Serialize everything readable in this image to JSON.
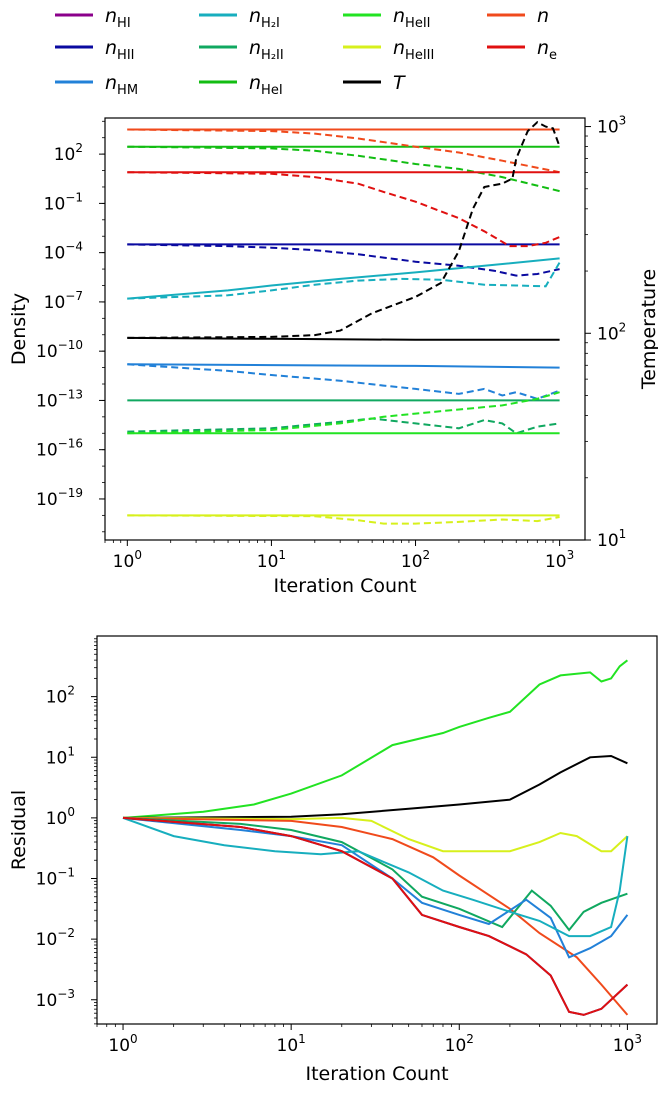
{
  "legend": {
    "items": [
      {
        "label": "n",
        "sub": "HI",
        "color": "#8b008b"
      },
      {
        "label": "n",
        "sub": "H₂I",
        "color": "#17aebe"
      },
      {
        "label": "n",
        "sub": "HeII",
        "color": "#22e322"
      },
      {
        "label": "n",
        "sub": "",
        "color": "#f04a1c"
      },
      {
        "label": "n",
        "sub": "HII",
        "color": "#0a0aa0"
      },
      {
        "label": "n",
        "sub": "H₂II",
        "color": "#10a860"
      },
      {
        "label": "n",
        "sub": "HeIII",
        "color": "#d7f01c"
      },
      {
        "label": "n",
        "sub": "e",
        "color": "#e01010"
      },
      {
        "label": "n",
        "sub": "HM",
        "color": "#2281d8"
      },
      {
        "label": "n",
        "sub": "HeI",
        "color": "#12bd12"
      },
      {
        "label": "T",
        "sub": "",
        "color": "#000000"
      }
    ]
  },
  "chart_data": [
    {
      "type": "line",
      "xlabel": "Iteration Count",
      "ylabel": "Density",
      "y2label": "Temperature",
      "xscale": "log",
      "yscale": "log",
      "y2scale": "log",
      "xlim": [
        0.7,
        1500
      ],
      "ylim_exp": [
        -21.5,
        4.2
      ],
      "y2lim": [
        10,
        1100
      ],
      "x_ticks": [
        "10^0",
        "10^1",
        "10^2",
        "10^3"
      ],
      "y_ticks": [
        "10^2",
        "10^-1",
        "10^-4",
        "10^-7",
        "10^-10",
        "10^-13",
        "10^-16",
        "10^-19"
      ],
      "y2_ticks": [
        "10^1",
        "10^2",
        "10^3"
      ],
      "series_note": "solid = density (left axis, log10 values), dashed = compared solution; T on right axis",
      "series": [
        {
          "name": "n_HII",
          "color": "#0a0aa0",
          "style": "solid",
          "x": [
            1,
            1000
          ],
          "log10_y": [
            -3.5,
            -3.5
          ]
        },
        {
          "name": "n_HII",
          "color": "#0a0aa0",
          "style": "dashed",
          "x": [
            1,
            5,
            10,
            20,
            40,
            60,
            100,
            200,
            350,
            500,
            700,
            1000
          ],
          "log10_y": [
            -3.5,
            -3.6,
            -3.7,
            -3.85,
            -4.1,
            -4.3,
            -4.55,
            -4.8,
            -5.1,
            -5.4,
            -5.3,
            -5.0
          ]
        },
        {
          "name": "n_H2I",
          "color": "#17aebe",
          "style": "solid",
          "x": [
            1,
            5,
            10,
            30,
            100,
            300,
            1000
          ],
          "log10_y": [
            -6.8,
            -6.3,
            -6.0,
            -5.6,
            -5.2,
            -4.8,
            -4.35
          ]
        },
        {
          "name": "n_H2I",
          "color": "#17aebe",
          "style": "dashed",
          "x": [
            1,
            5,
            10,
            20,
            40,
            80,
            150,
            300,
            500,
            800,
            1000
          ],
          "log10_y": [
            -6.8,
            -6.6,
            -6.3,
            -5.95,
            -5.7,
            -5.6,
            -5.65,
            -5.95,
            -6.0,
            -6.05,
            -4.6
          ]
        },
        {
          "name": "n_HM",
          "color": "#2281d8",
          "style": "solid",
          "x": [
            1,
            10,
            100,
            1000
          ],
          "log10_y": [
            -10.8,
            -10.85,
            -10.9,
            -11.0
          ]
        },
        {
          "name": "n_HM",
          "color": "#2281d8",
          "style": "dashed",
          "x": [
            1,
            5,
            10,
            30,
            60,
            100,
            200,
            300,
            400,
            500,
            700,
            1000
          ],
          "log10_y": [
            -10.8,
            -11.2,
            -11.45,
            -11.8,
            -12.1,
            -12.3,
            -12.6,
            -12.3,
            -12.7,
            -12.5,
            -12.9,
            -12.4
          ]
        },
        {
          "name": "n_H2II",
          "color": "#10a860",
          "style": "solid",
          "x": [
            1,
            1000
          ],
          "log10_y": [
            -13.0,
            -13.0
          ]
        },
        {
          "name": "n_H2II",
          "color": "#10a860",
          "style": "dashed",
          "x": [
            1,
            10,
            30,
            50,
            100,
            200,
            300,
            400,
            500,
            700,
            1000
          ],
          "log10_y": [
            -14.9,
            -14.7,
            -14.3,
            -14.1,
            -14.4,
            -14.7,
            -14.2,
            -14.4,
            -15.0,
            -14.6,
            -14.4
          ]
        },
        {
          "name": "n_HeII",
          "color": "#22e322",
          "style": "solid",
          "x": [
            1,
            1000
          ],
          "log10_y": [
            -15.0,
            -15.0
          ]
        },
        {
          "name": "n_HeII",
          "color": "#22e322",
          "style": "dashed",
          "x": [
            1,
            10,
            30,
            60,
            100,
            200,
            400,
            700,
            1000
          ],
          "log10_y": [
            -15.0,
            -14.8,
            -14.4,
            -14.0,
            -13.8,
            -13.55,
            -13.3,
            -12.9,
            -12.5
          ]
        },
        {
          "name": "n_HeI",
          "color": "#12bd12",
          "style": "solid",
          "x": [
            1,
            1000
          ],
          "log10_y": [
            2.45,
            2.45
          ]
        },
        {
          "name": "n_HeI",
          "color": "#12bd12",
          "style": "dashed",
          "x": [
            1,
            10,
            20,
            40,
            70,
            100,
            200,
            400,
            1000
          ],
          "log10_y": [
            2.45,
            2.35,
            2.2,
            1.9,
            1.6,
            1.4,
            1.1,
            0.6,
            -0.25
          ]
        },
        {
          "name": "n",
          "color": "#f04a1c",
          "style": "solid",
          "x": [
            1,
            1000
          ],
          "log10_y": [
            3.5,
            3.5
          ]
        },
        {
          "name": "n",
          "color": "#f04a1c",
          "style": "dashed",
          "x": [
            1,
            10,
            20,
            40,
            70,
            100,
            200,
            400,
            1000
          ],
          "log10_y": [
            3.5,
            3.4,
            3.25,
            2.95,
            2.65,
            2.45,
            2.1,
            1.6,
            0.9
          ]
        },
        {
          "name": "n_e",
          "color": "#e01010",
          "style": "solid",
          "x": [
            1,
            1000
          ],
          "log10_y": [
            0.9,
            0.9
          ]
        },
        {
          "name": "n_e",
          "color": "#e01010",
          "style": "dashed",
          "x": [
            1,
            10,
            20,
            40,
            60,
            100,
            200,
            300,
            450,
            600,
            800,
            1000
          ],
          "log10_y": [
            0.9,
            0.8,
            0.6,
            0.2,
            -0.3,
            -0.9,
            -1.9,
            -2.7,
            -3.6,
            -3.6,
            -3.4,
            -3.05
          ]
        },
        {
          "name": "n_HeIII",
          "color": "#d7f01c",
          "style": "solid",
          "x": [
            1,
            1000
          ],
          "log10_y": [
            -20.0,
            -20.0
          ]
        },
        {
          "name": "n_HeIII",
          "color": "#d7f01c",
          "style": "dashed",
          "x": [
            1,
            20,
            40,
            60,
            100,
            200,
            400,
            700,
            1000
          ],
          "log10_y": [
            -20.0,
            -20.05,
            -20.3,
            -20.5,
            -20.5,
            -20.4,
            -20.25,
            -20.35,
            -20.1
          ]
        },
        {
          "name": "T",
          "color": "#000000",
          "style": "solid",
          "axis": "right",
          "x": [
            1,
            10,
            100,
            1000
          ],
          "y": [
            95,
            94,
            93,
            93
          ]
        },
        {
          "name": "T",
          "color": "#000000",
          "style": "dashed",
          "axis": "right",
          "x": [
            1,
            10,
            20,
            30,
            50,
            100,
            150,
            200,
            250,
            300,
            400,
            470,
            500,
            600,
            700,
            800,
            900,
            1000
          ],
          "y": [
            95,
            96,
            98,
            103,
            125,
            150,
            175,
            250,
            400,
            510,
            530,
            560,
            700,
            950,
            1050,
            1000,
            980,
            800
          ]
        }
      ]
    },
    {
      "type": "line",
      "xlabel": "Iteration Count",
      "ylabel": "Residual",
      "xscale": "log",
      "yscale": "log",
      "xlim": [
        0.7,
        1500
      ],
      "ylim_exp": [
        -3.4,
        3.0
      ],
      "x_ticks": [
        "10^0",
        "10^1",
        "10^2",
        "10^3"
      ],
      "y_ticks": [
        "10^2",
        "10^1",
        "10^0",
        "10^-1",
        "10^-2",
        "10^-3"
      ],
      "series": [
        {
          "name": "n_HeII",
          "color": "#22e322",
          "x": [
            1,
            3,
            6,
            10,
            20,
            40,
            80,
            100,
            150,
            200,
            300,
            400,
            600,
            700,
            800,
            900,
            1000
          ],
          "log10_y": [
            0.0,
            0.1,
            0.22,
            0.4,
            0.7,
            1.2,
            1.4,
            1.5,
            1.65,
            1.75,
            2.2,
            2.35,
            2.4,
            2.25,
            2.3,
            2.5,
            2.6
          ]
        },
        {
          "name": "T",
          "color": "#000000",
          "x": [
            1,
            10,
            20,
            50,
            100,
            200,
            300,
            400,
            600,
            800,
            1000
          ],
          "log10_y": [
            0.0,
            0.02,
            0.06,
            0.15,
            0.22,
            0.3,
            0.55,
            0.75,
            1.0,
            1.02,
            0.9
          ]
        },
        {
          "name": "n_HeIII",
          "color": "#d7f01c",
          "x": [
            1,
            10,
            20,
            30,
            50,
            80,
            100,
            200,
            300,
            400,
            500,
            700,
            800,
            1000
          ],
          "log10_y": [
            0.0,
            -0.02,
            0.0,
            -0.05,
            -0.35,
            -0.55,
            -0.55,
            -0.55,
            -0.4,
            -0.25,
            -0.3,
            -0.55,
            -0.55,
            -0.3
          ]
        },
        {
          "name": "n",
          "color": "#f04a1c",
          "x": [
            1,
            10,
            20,
            40,
            70,
            100,
            200,
            300,
            500,
            700,
            1000
          ],
          "log10_y": [
            0.0,
            -0.05,
            -0.15,
            -0.35,
            -0.65,
            -0.95,
            -1.5,
            -1.9,
            -2.3,
            -2.75,
            -3.25
          ]
        },
        {
          "name": "n_H2II",
          "color": "#10a860",
          "x": [
            1,
            5,
            10,
            20,
            40,
            60,
            100,
            180,
            270,
            350,
            450,
            550,
            700,
            1000
          ],
          "log10_y": [
            0.0,
            -0.1,
            -0.2,
            -0.4,
            -0.85,
            -1.3,
            -1.5,
            -1.8,
            -1.2,
            -1.45,
            -1.85,
            -1.55,
            -1.4,
            -1.25
          ]
        },
        {
          "name": "n_HM",
          "color": "#2281d8",
          "x": [
            1,
            5,
            10,
            20,
            40,
            60,
            100,
            150,
            250,
            350,
            450,
            600,
            800,
            1000
          ],
          "log10_y": [
            0.0,
            -0.2,
            -0.3,
            -0.45,
            -1.0,
            -1.4,
            -1.6,
            -1.75,
            -1.35,
            -1.65,
            -2.3,
            -2.15,
            -1.95,
            -1.6
          ]
        },
        {
          "name": "n_H2I",
          "color": "#17aebe",
          "x": [
            1,
            2,
            4,
            8,
            15,
            25,
            50,
            80,
            120,
            200,
            300,
            450,
            600,
            800,
            900,
            1000
          ],
          "log10_y": [
            0.0,
            -0.3,
            -0.45,
            -0.55,
            -0.6,
            -0.55,
            -0.9,
            -1.2,
            -1.35,
            -1.55,
            -1.7,
            -1.95,
            -1.95,
            -1.8,
            -1.2,
            -0.3
          ]
        },
        {
          "name": "n_HII",
          "color": "#0a0aa0",
          "x": [
            1,
            5,
            10,
            20,
            40,
            60,
            100,
            150,
            250,
            350,
            450,
            550,
            700,
            1000
          ],
          "log10_y": [
            0.0,
            -0.15,
            -0.3,
            -0.55,
            -1.0,
            -1.6,
            -1.8,
            -1.95,
            -2.25,
            -2.6,
            -3.2,
            -3.25,
            -3.15,
            -2.75
          ]
        },
        {
          "name": "n_e",
          "color": "#e01010",
          "x": [
            1,
            5,
            10,
            20,
            40,
            60,
            100,
            150,
            250,
            350,
            450,
            550,
            700,
            1000
          ],
          "log10_y": [
            0.0,
            -0.15,
            -0.3,
            -0.55,
            -1.0,
            -1.6,
            -1.8,
            -1.95,
            -2.25,
            -2.6,
            -3.2,
            -3.25,
            -3.15,
            -2.75
          ]
        }
      ]
    }
  ]
}
